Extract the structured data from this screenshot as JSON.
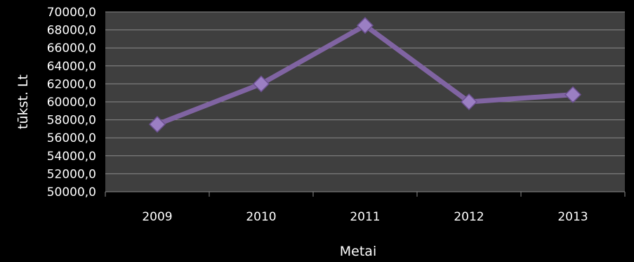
{
  "chart_data": {
    "type": "line",
    "title": "",
    "xlabel": "Metai",
    "ylabel": "tūkst. Lt",
    "categories": [
      "2009",
      "2010",
      "2011",
      "2012",
      "2013"
    ],
    "y_tick_labels": [
      "70000,0",
      "68000,0",
      "66000,0",
      "64000,0",
      "62000,0",
      "60000,0",
      "58000,0",
      "56000,0",
      "54000,0",
      "52000,0",
      "50000,0"
    ],
    "ylim": [
      50000,
      70000
    ],
    "grid": true,
    "legend": "none",
    "series": [
      {
        "values": [
          57500,
          62000,
          68500,
          60000,
          60800
        ]
      }
    ],
    "colors": {
      "background": "#000000",
      "plot_area": "#3f3f3f",
      "gridline": "#8a8a8a",
      "line": "#8064a2",
      "marker": "#9b7fc3",
      "text": "#ffffff"
    }
  }
}
